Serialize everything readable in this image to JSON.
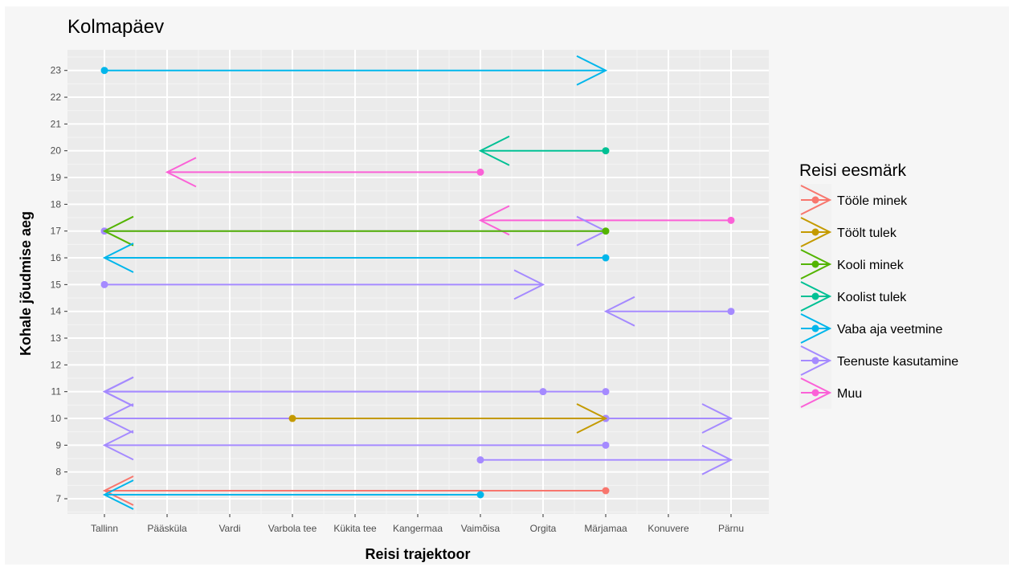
{
  "chart_data": {
    "type": "scatter",
    "title": "Kolmapäev",
    "xlabel": "Reisi trajektoor",
    "ylabel": "Kohale jõudmise aeg",
    "x_categories": [
      "Tallinn",
      "Pääsküla",
      "Vardi",
      "Varbola tee",
      "Kükita tee",
      "Kangermaa",
      "Vaimõisa",
      "Orgita",
      "Märjamaa",
      "Konuvere",
      "Pärnu"
    ],
    "y_ticks": [
      7,
      8,
      9,
      10,
      11,
      12,
      13,
      14,
      15,
      16,
      17,
      18,
      19,
      20,
      21,
      22,
      23
    ],
    "ylim": [
      6.5,
      23.8
    ],
    "grid": true,
    "legend": {
      "title": "Reisi eesmärk",
      "position": "right",
      "entries": [
        {
          "name": "Tööle minek",
          "color": "#F8766D"
        },
        {
          "name": "Töölt tulek",
          "color": "#C49A00"
        },
        {
          "name": "Kooli minek",
          "color": "#53B400"
        },
        {
          "name": "Koolist tulek",
          "color": "#00C094"
        },
        {
          "name": "Vaba aja veetmine",
          "color": "#00B6EB"
        },
        {
          "name": "Teenuste kasutamine",
          "color": "#A58AFF"
        },
        {
          "name": "Muu",
          "color": "#FB61D7"
        }
      ]
    },
    "trips": [
      {
        "purpose": "Vaba aja veetmine",
        "from": "Tallinn",
        "to": "Märjamaa",
        "time": 23
      },
      {
        "purpose": "Koolist tulek",
        "from": "Märjamaa",
        "to": "Vaimõisa",
        "time": 20
      },
      {
        "purpose": "Muu",
        "from": "Vaimõisa",
        "to": "Pääsküla",
        "time": 19.2
      },
      {
        "purpose": "Muu",
        "from": "Pärnu",
        "to": "Vaimõisa",
        "time": 17.4
      },
      {
        "purpose": "Teenuste kasutamine",
        "from": "Tallinn",
        "to": "Märjamaa",
        "time": 17
      },
      {
        "purpose": "Kooli minek",
        "from": "Märjamaa",
        "to": "Tallinn",
        "time": 17
      },
      {
        "purpose": "Vaba aja veetmine",
        "from": "Märjamaa",
        "to": "Tallinn",
        "time": 16
      },
      {
        "purpose": "Teenuste kasutamine",
        "from": "Tallinn",
        "to": "Orgita",
        "time": 15
      },
      {
        "purpose": "Teenuste kasutamine",
        "from": "Pärnu",
        "to": "Märjamaa",
        "time": 14
      },
      {
        "purpose": "Teenuste kasutamine",
        "from": "Märjamaa",
        "to": "Tallinn",
        "time": 11
      },
      {
        "purpose": "Teenuste kasutamine",
        "from": "Orgita",
        "to": "Tallinn",
        "time": 11
      },
      {
        "purpose": "Teenuste kasutamine",
        "from": "Märjamaa",
        "to": "Tallinn",
        "time": 10
      },
      {
        "purpose": "Teenuste kasutamine",
        "from": "Märjamaa",
        "to": "Pärnu",
        "time": 10
      },
      {
        "purpose": "Töölt tulek",
        "from": "Varbola tee",
        "to": "Märjamaa",
        "time": 10
      },
      {
        "purpose": "Teenuste kasutamine",
        "from": "Märjamaa",
        "to": "Tallinn",
        "time": 9
      },
      {
        "purpose": "Teenuste kasutamine",
        "from": "Vaimõisa",
        "to": "Pärnu",
        "time": 8.45
      },
      {
        "purpose": "Tööle minek",
        "from": "Märjamaa",
        "to": "Tallinn",
        "time": 7.3
      },
      {
        "purpose": "Vaba aja veetmine",
        "from": "Vaimõisa",
        "to": "Tallinn",
        "time": 7.15
      }
    ]
  }
}
